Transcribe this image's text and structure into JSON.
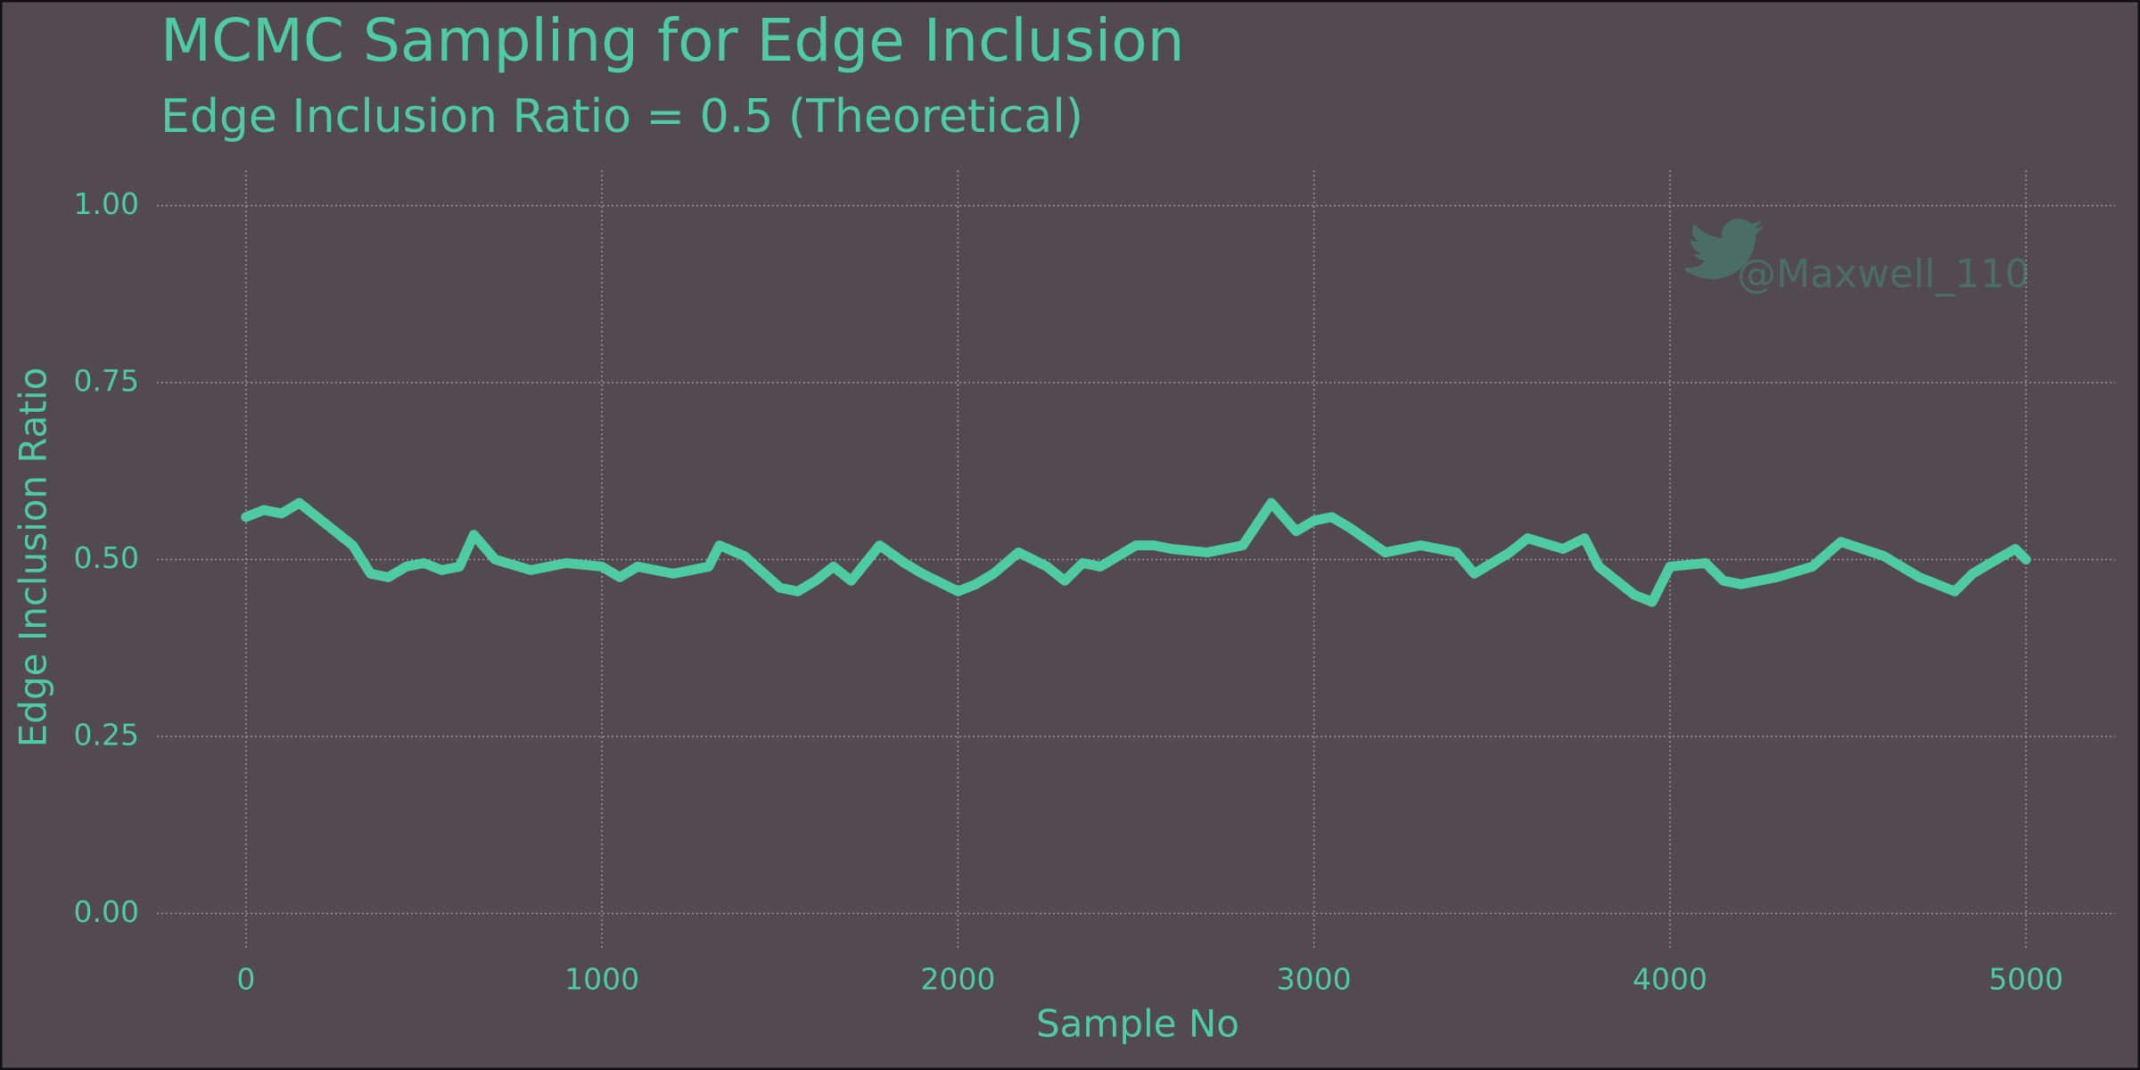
{
  "chart_data": {
    "type": "line",
    "title": "MCMC Sampling for Edge Inclusion",
    "subtitle": "Edge Inclusion Ratio = 0.5 (Theoretical)",
    "xlabel": "Sample No",
    "ylabel": "Edge Inclusion Ratio",
    "watermark": "@Maxwell_110",
    "grid": true,
    "xlim": [
      -250,
      5250
    ],
    "ylim": [
      -0.05,
      1.05
    ],
    "xticks": [
      0,
      1000,
      2000,
      3000,
      4000,
      5000
    ],
    "yticks": [
      {
        "value": 0,
        "label": "0.00"
      },
      {
        "value": 0.25,
        "label": "0.25"
      },
      {
        "value": 0.5,
        "label": "0.50"
      },
      {
        "value": 0.75,
        "label": "0.75"
      },
      {
        "value": 1,
        "label": "1.00"
      }
    ],
    "x": [
      0,
      50,
      100,
      150,
      200,
      250,
      300,
      350,
      400,
      450,
      500,
      550,
      600,
      640,
      700,
      800,
      900,
      1000,
      1050,
      1100,
      1200,
      1300,
      1330,
      1400,
      1500,
      1550,
      1600,
      1650,
      1700,
      1780,
      1850,
      1900,
      2000,
      2050,
      2100,
      2170,
      2250,
      2300,
      2350,
      2400,
      2500,
      2550,
      2600,
      2700,
      2800,
      2880,
      2950,
      3000,
      3050,
      3100,
      3200,
      3300,
      3400,
      3450,
      3550,
      3600,
      3700,
      3760,
      3800,
      3900,
      3950,
      4000,
      4100,
      4150,
      4200,
      4300,
      4400,
      4480,
      4600,
      4700,
      4800,
      4850,
      4900,
      4970,
      5000
    ],
    "series": [
      {
        "name": "Edge Inclusion Ratio",
        "color": "#4fcba2",
        "values": [
          0.56,
          0.57,
          0.565,
          0.58,
          0.56,
          0.54,
          0.52,
          0.48,
          0.475,
          0.49,
          0.495,
          0.485,
          0.49,
          0.535,
          0.5,
          0.485,
          0.495,
          0.49,
          0.475,
          0.49,
          0.48,
          0.49,
          0.52,
          0.505,
          0.46,
          0.455,
          0.47,
          0.49,
          0.47,
          0.52,
          0.495,
          0.48,
          0.455,
          0.465,
          0.48,
          0.51,
          0.49,
          0.47,
          0.495,
          0.49,
          0.52,
          0.52,
          0.515,
          0.51,
          0.52,
          0.58,
          0.54,
          0.555,
          0.56,
          0.545,
          0.51,
          0.52,
          0.51,
          0.48,
          0.51,
          0.53,
          0.515,
          0.53,
          0.49,
          0.45,
          0.44,
          0.49,
          0.495,
          0.47,
          0.465,
          0.475,
          0.49,
          0.525,
          0.505,
          0.475,
          0.455,
          0.48,
          0.495,
          0.515,
          0.5
        ]
      }
    ]
  }
}
